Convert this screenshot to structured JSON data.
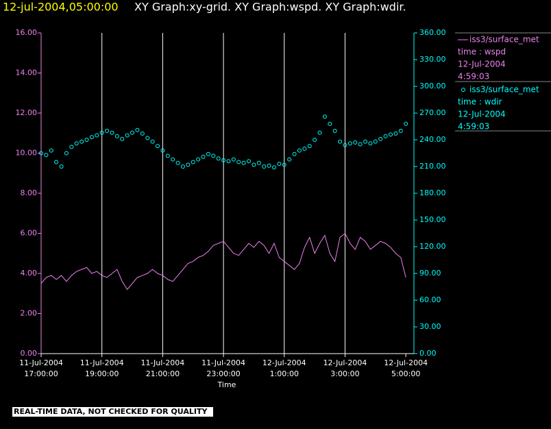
{
  "chart_data": {
    "type": "line",
    "title_time": "12-jul-2004,05:00:00",
    "title": "XY Graph:xy-grid.  XY Graph:wspd.  XY Graph:wdir.",
    "xlabel": "Time",
    "footer": "REAL-TIME DATA, NOT CHECKED FOR QUALITY",
    "grid": true,
    "xlim": [
      "2004-07-11T17:00",
      "2004-07-12T05:16"
    ],
    "xticks": [
      {
        "value": "2004-07-11T17:00",
        "label": [
          "11-Jul-2004",
          "17:00:00"
        ]
      },
      {
        "value": "2004-07-11T19:00",
        "label": [
          "11-Jul-2004",
          "19:00:00"
        ]
      },
      {
        "value": "2004-07-11T21:00",
        "label": [
          "11-Jul-2004",
          "21:00:00"
        ]
      },
      {
        "value": "2004-07-11T23:00",
        "label": [
          "11-Jul-2004",
          "23:00:00"
        ]
      },
      {
        "value": "2004-07-12T01:00",
        "label": [
          "12-Jul-2004",
          "1:00:00"
        ]
      },
      {
        "value": "2004-07-12T03:00",
        "label": [
          "12-Jul-2004",
          "3:00:00"
        ]
      },
      {
        "value": "2004-07-12T05:00",
        "label": [
          "12-Jul-2004",
          "5:00:00"
        ]
      }
    ],
    "ylim": [
      0,
      16
    ],
    "yticks": [
      {
        "value": 0,
        "label": "0.00"
      },
      {
        "value": 2,
        "label": "2.00"
      },
      {
        "value": 4,
        "label": "4.00"
      },
      {
        "value": 6,
        "label": "6.00"
      },
      {
        "value": 8,
        "label": "8.00"
      },
      {
        "value": 10,
        "label": "10.00"
      },
      {
        "value": 12,
        "label": "12.00"
      },
      {
        "value": 14,
        "label": "14.00"
      },
      {
        "value": 16,
        "label": "16.00"
      }
    ],
    "y2lim": [
      0,
      360
    ],
    "y2ticks": [
      {
        "value": 0,
        "label": "0.00"
      },
      {
        "value": 30,
        "label": "30.00"
      },
      {
        "value": 60,
        "label": "60.00"
      },
      {
        "value": 90,
        "label": "90.00"
      },
      {
        "value": 120,
        "label": "120.00"
      },
      {
        "value": 150,
        "label": "150.00"
      },
      {
        "value": 180,
        "label": "180.00"
      },
      {
        "value": 210,
        "label": "210.00"
      },
      {
        "value": 240,
        "label": "240.00"
      },
      {
        "value": 270,
        "label": "270.00"
      },
      {
        "value": 300,
        "label": "300.00"
      },
      {
        "value": 330,
        "label": "330.00"
      },
      {
        "value": 360,
        "label": "360.00"
      }
    ],
    "x": [
      "2004-07-11T17:00",
      "2004-07-11T17:10",
      "2004-07-11T17:20",
      "2004-07-11T17:30",
      "2004-07-11T17:40",
      "2004-07-11T17:50",
      "2004-07-11T18:00",
      "2004-07-11T18:10",
      "2004-07-11T18:20",
      "2004-07-11T18:30",
      "2004-07-11T18:40",
      "2004-07-11T18:50",
      "2004-07-11T19:00",
      "2004-07-11T19:10",
      "2004-07-11T19:20",
      "2004-07-11T19:30",
      "2004-07-11T19:40",
      "2004-07-11T19:50",
      "2004-07-11T20:00",
      "2004-07-11T20:10",
      "2004-07-11T20:20",
      "2004-07-11T20:30",
      "2004-07-11T20:40",
      "2004-07-11T20:50",
      "2004-07-11T21:00",
      "2004-07-11T21:10",
      "2004-07-11T21:20",
      "2004-07-11T21:30",
      "2004-07-11T21:40",
      "2004-07-11T21:50",
      "2004-07-11T22:00",
      "2004-07-11T22:10",
      "2004-07-11T22:20",
      "2004-07-11T22:30",
      "2004-07-11T22:40",
      "2004-07-11T22:50",
      "2004-07-11T23:00",
      "2004-07-11T23:10",
      "2004-07-11T23:20",
      "2004-07-11T23:30",
      "2004-07-11T23:40",
      "2004-07-11T23:50",
      "2004-07-12T00:00",
      "2004-07-12T00:10",
      "2004-07-12T00:20",
      "2004-07-12T00:30",
      "2004-07-12T00:40",
      "2004-07-12T00:50",
      "2004-07-12T01:00",
      "2004-07-12T01:10",
      "2004-07-12T01:20",
      "2004-07-12T01:30",
      "2004-07-12T01:40",
      "2004-07-12T01:50",
      "2004-07-12T02:00",
      "2004-07-12T02:10",
      "2004-07-12T02:20",
      "2004-07-12T02:30",
      "2004-07-12T02:40",
      "2004-07-12T02:50",
      "2004-07-12T03:00",
      "2004-07-12T03:10",
      "2004-07-12T03:20",
      "2004-07-12T03:30",
      "2004-07-12T03:40",
      "2004-07-12T03:50",
      "2004-07-12T04:00",
      "2004-07-12T04:10",
      "2004-07-12T04:20",
      "2004-07-12T04:30",
      "2004-07-12T04:40",
      "2004-07-12T04:50",
      "2004-07-12T05:00"
    ],
    "series": [
      {
        "name": "iss3/surface_met",
        "legend": [
          "time : wspd",
          "12-Jul-2004",
          "4:59:03"
        ],
        "type": "line",
        "color": "#ee82ee",
        "values": [
          3.5,
          3.8,
          3.9,
          3.7,
          3.9,
          3.6,
          3.9,
          4.1,
          4.2,
          4.3,
          4.0,
          4.1,
          3.9,
          3.8,
          4.0,
          4.2,
          3.6,
          3.2,
          3.5,
          3.8,
          3.9,
          4.0,
          4.2,
          4.0,
          3.9,
          3.7,
          3.6,
          3.9,
          4.2,
          4.5,
          4.6,
          4.8,
          4.9,
          5.1,
          5.4,
          5.5,
          5.6,
          5.3,
          5.0,
          4.9,
          5.2,
          5.5,
          5.3,
          5.6,
          5.4,
          5.0,
          5.5,
          4.8,
          4.6,
          4.4,
          4.2,
          4.5,
          5.3,
          5.8,
          5.0,
          5.5,
          5.9,
          5.0,
          4.6,
          5.8,
          6.0,
          5.5,
          5.2,
          5.8,
          5.6,
          5.2,
          5.4,
          5.6,
          5.5,
          5.3,
          5.0,
          4.8,
          3.8
        ]
      },
      {
        "name": "iss3/surface_met",
        "legend": [
          "time : wdir",
          "12-Jul-2004",
          "4:59:03"
        ],
        "type": "scatter",
        "axis": "y2",
        "color": "#00ffff",
        "values": [
          225,
          223,
          228,
          215,
          210,
          225,
          232,
          236,
          238,
          240,
          243,
          245,
          248,
          250,
          248,
          244,
          241,
          245,
          248,
          251,
          247,
          242,
          238,
          233,
          228,
          222,
          218,
          214,
          210,
          212,
          215,
          218,
          221,
          224,
          222,
          219,
          217,
          216,
          218,
          215,
          214,
          216,
          212,
          214,
          210,
          211,
          209,
          213,
          212,
          218,
          224,
          228,
          230,
          233,
          240,
          248,
          266,
          258,
          250,
          238,
          234,
          236,
          237,
          235,
          238,
          236,
          238,
          241,
          244,
          246,
          247,
          250,
          258
        ]
      }
    ]
  }
}
